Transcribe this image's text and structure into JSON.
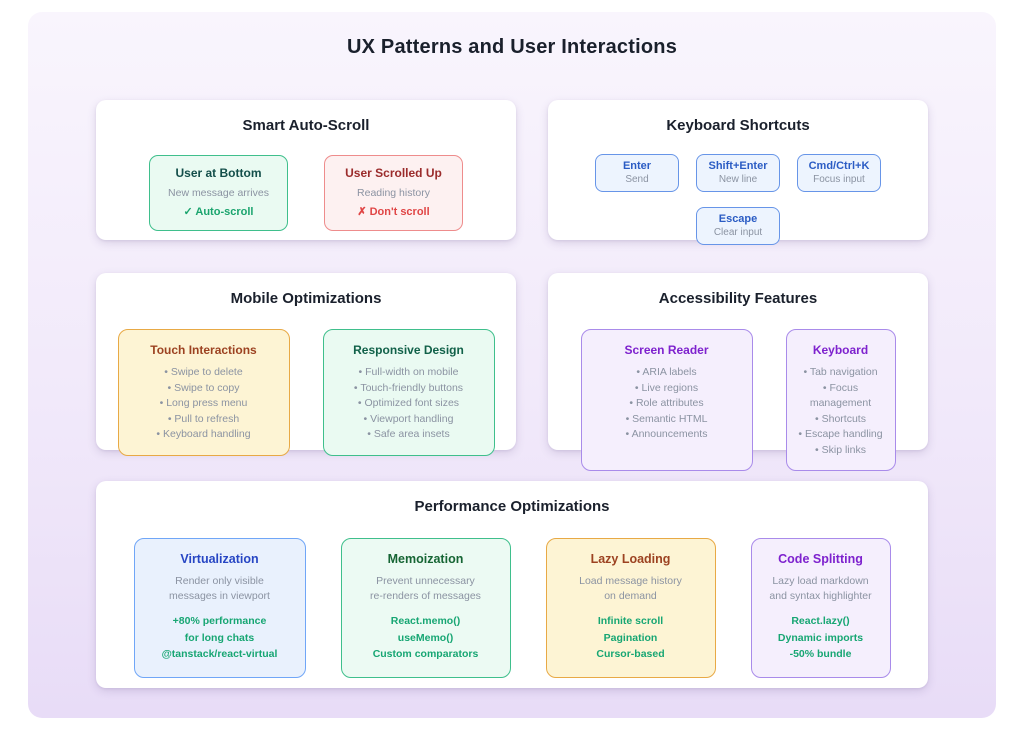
{
  "page": {
    "title": "UX Patterns and User Interactions"
  },
  "panels": {
    "auto_scroll": {
      "title": "Smart Auto-Scroll",
      "cards": [
        {
          "title": "User at Bottom",
          "desc": "New message arrives",
          "action": "✓ Auto-scroll"
        },
        {
          "title": "User Scrolled Up",
          "desc": "Reading history",
          "action": "✗ Don't scroll"
        }
      ]
    },
    "keyboard_shortcuts": {
      "title": "Keyboard Shortcuts",
      "keys": [
        {
          "key": "Enter",
          "action": "Send"
        },
        {
          "key": "Shift+Enter",
          "action": "New line"
        },
        {
          "key": "Cmd/Ctrl+K",
          "action": "Focus input"
        },
        {
          "key": "Escape",
          "action": "Clear input"
        }
      ]
    },
    "mobile": {
      "title": "Mobile Optimizations",
      "cards": [
        {
          "title": "Touch Interactions",
          "items": [
            "Swipe to delete",
            "Swipe to copy",
            "Long press menu",
            "Pull to refresh",
            "Keyboard handling"
          ]
        },
        {
          "title": "Responsive Design",
          "items": [
            "Full-width on mobile",
            "Touch-friendly buttons",
            "Optimized font sizes",
            "Viewport handling",
            "Safe area insets"
          ]
        }
      ]
    },
    "accessibility": {
      "title": "Accessibility Features",
      "cards": [
        {
          "title": "Screen Reader",
          "items": [
            "ARIA labels",
            "Live regions",
            "Role attributes",
            "Semantic HTML",
            "Announcements"
          ]
        },
        {
          "title": "Keyboard",
          "items": [
            "Tab navigation",
            "Focus management",
            "Shortcuts",
            "Escape handling",
            "Skip links"
          ]
        }
      ]
    },
    "performance": {
      "title": "Performance Optimizations",
      "cards": [
        {
          "title": "Virtualization",
          "desc": [
            "Render only visible",
            "messages in viewport"
          ],
          "stats": [
            "+80% performance",
            "for long chats",
            "@tanstack/react-virtual"
          ]
        },
        {
          "title": "Memoization",
          "desc": [
            "Prevent unnecessary",
            "re-renders of messages"
          ],
          "stats": [
            "React.memo()",
            "useMemo()",
            "Custom comparators"
          ]
        },
        {
          "title": "Lazy Loading",
          "desc": [
            "Load message history",
            "on demand"
          ],
          "stats": [
            "Infinite scroll",
            "Pagination",
            "Cursor-based"
          ]
        },
        {
          "title": "Code Splitting",
          "desc": [
            "Lazy load markdown",
            "and syntax highlighter"
          ],
          "stats": [
            "React.lazy()",
            "Dynamic imports",
            "-50% bundle"
          ]
        }
      ]
    }
  },
  "colors": {
    "background_top": "#f9f5fd",
    "background_bottom": "#e8dcf7",
    "panel": "#ffffff",
    "heading_text": "#1a202c",
    "muted_text": "#8b93a2",
    "green_border": "#3fbf8c",
    "red_border": "#ee8c8c",
    "blue_border": "#6795e8",
    "yellow_border": "#e8a945",
    "purple_border": "#a98bea",
    "stat_green": "#17a673",
    "key_blue": "#2b5cc4"
  }
}
